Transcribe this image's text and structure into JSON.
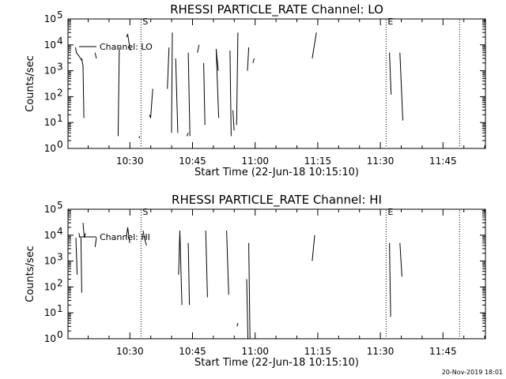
{
  "footer": {
    "timestamp": "20-Nov-2019 18:01"
  },
  "chart_data": [
    {
      "type": "line",
      "title": "RHESSI PARTICLE_RATE Channel: LO",
      "xlabel": "Start Time (22-Jun-18 10:15:10)",
      "ylabel": "Counts/sec",
      "x_unit": "minutes after 10:15:10",
      "xlim": [
        0,
        100
      ],
      "ylim": [
        1,
        100000
      ],
      "yscale": "log",
      "x_ticks": [
        {
          "v": 14.83,
          "label": "10:30"
        },
        {
          "v": 29.83,
          "label": "10:45"
        },
        {
          "v": 44.83,
          "label": "11:00"
        },
        {
          "v": 59.83,
          "label": "11:15"
        },
        {
          "v": 74.83,
          "label": "11:30"
        },
        {
          "v": 89.83,
          "label": "11:45"
        }
      ],
      "y_ticks": [
        {
          "v": 1,
          "label": "10^0"
        },
        {
          "v": 10,
          "label": "10^1"
        },
        {
          "v": 100,
          "label": "10^2"
        },
        {
          "v": 1000,
          "label": "10^3"
        },
        {
          "v": 10000,
          "label": "10^4"
        },
        {
          "v": 100000,
          "label": "10^5"
        }
      ],
      "legend": "Channel: LO",
      "vlines": [
        {
          "x": 17.5,
          "marker": "S"
        },
        {
          "x": 76.2,
          "marker": "E"
        },
        {
          "x": 93.8,
          "marker": ""
        }
      ],
      "series": [
        {
          "segments": [
            [
              [
                1.8,
                8000
              ],
              [
                2.0,
                5000
              ],
              [
                2.5,
                4000
              ],
              [
                3.0,
                3000
              ],
              [
                3.3,
                2500
              ]
            ],
            [
              [
                3.3,
                3000
              ],
              [
                3.6,
                1500
              ],
              [
                3.8,
                15
              ]
            ],
            [
              [
                6.5,
                5000
              ],
              [
                6.8,
                3000
              ]
            ],
            [
              [
                12.0,
                3
              ],
              [
                12.3,
                8000
              ]
            ],
            [
              [
                14.0,
                20000
              ],
              [
                14.3,
                25000
              ],
              [
                14.8,
                8000
              ],
              [
                15.0,
                6000
              ]
            ],
            [
              [
                17.0,
                3
              ],
              [
                17.2,
                2.5
              ]
            ],
            [
              [
                19.5,
                20
              ],
              [
                19.8,
                15
              ],
              [
                20.3,
                200
              ]
            ],
            [
              [
                23.8,
                200
              ],
              [
                24.2,
                8000
              ]
            ],
            [
              [
                24.8,
                4
              ],
              [
                25.0,
                30000
              ]
            ],
            [
              [
                25.8,
                3000
              ],
              [
                26.3,
                4
              ]
            ],
            [
              [
                28.5,
                3
              ],
              [
                28.8,
                4
              ]
            ],
            [
              [
                28.8,
                5000
              ],
              [
                29.2,
                3
              ]
            ],
            [
              [
                31.0,
                5000
              ],
              [
                31.4,
                10000
              ]
            ],
            [
              [
                32.5,
                2000
              ],
              [
                32.8,
                8
              ]
            ],
            [
              [
                36.0,
                1000
              ],
              [
                35.5,
                7000
              ],
              [
                36.1,
                15
              ]
            ],
            [
              [
                38.8,
                6000
              ],
              [
                39.1,
                3
              ]
            ],
            [
              [
                39.5,
                30
              ],
              [
                39.8,
                5
              ]
            ],
            [
              [
                40.4,
                8
              ],
              [
                40.7,
                30000
              ]
            ],
            [
              [
                43.0,
                1000
              ],
              [
                43.3,
                8000
              ]
            ],
            [
              [
                44.6,
                3000
              ],
              [
                44.3,
                2000
              ]
            ],
            [
              [
                58.5,
                3000
              ],
              [
                59.5,
                30000
              ]
            ],
            [
              [
                77.0,
                5000
              ],
              [
                77.4,
                120
              ]
            ],
            [
              [
                79.5,
                5000
              ],
              [
                80.2,
                12
              ]
            ]
          ]
        }
      ]
    },
    {
      "type": "line",
      "title": "RHESSI PARTICLE_RATE Channel: HI",
      "xlabel": "Start Time (22-Jun-18 10:15:10)",
      "ylabel": "Counts/sec",
      "x_unit": "minutes after 10:15:10",
      "xlim": [
        0,
        100
      ],
      "ylim": [
        1,
        100000
      ],
      "yscale": "log",
      "x_ticks": [
        {
          "v": 14.83,
          "label": "10:30"
        },
        {
          "v": 29.83,
          "label": "10:45"
        },
        {
          "v": 44.83,
          "label": "11:00"
        },
        {
          "v": 59.83,
          "label": "11:15"
        },
        {
          "v": 74.83,
          "label": "11:30"
        },
        {
          "v": 89.83,
          "label": "11:45"
        }
      ],
      "y_ticks": [
        {
          "v": 1,
          "label": "10^0"
        },
        {
          "v": 10,
          "label": "10^1"
        },
        {
          "v": 100,
          "label": "10^2"
        },
        {
          "v": 1000,
          "label": "10^3"
        },
        {
          "v": 10000,
          "label": "10^4"
        },
        {
          "v": 100000,
          "label": "10^5"
        }
      ],
      "legend": "Channel: HI",
      "vlines": [
        {
          "x": 17.5,
          "marker": "S"
        },
        {
          "x": 76.2,
          "marker": "E"
        },
        {
          "x": 93.8,
          "marker": ""
        }
      ],
      "series": [
        {
          "segments": [
            [
              [
                1.9,
                8000
              ],
              [
                2.2,
                300
              ]
            ],
            [
              [
                2.6,
                12000
              ],
              [
                2.9,
                8000
              ]
            ],
            [
              [
                3.1,
                8000
              ],
              [
                3.3,
                60
              ]
            ],
            [
              [
                3.6,
                30000
              ],
              [
                3.9,
                8000
              ],
              [
                4.2,
                12000
              ]
            ],
            [
              [
                6.5,
                3500
              ],
              [
                6.8,
                8000
              ]
            ],
            [
              [
                14.0,
                8000
              ],
              [
                14.3,
                20000
              ],
              [
                14.8,
                5000
              ]
            ],
            [
              [
                18.0,
                15000
              ],
              [
                18.3,
                8000
              ],
              [
                18.8,
                4000
              ]
            ],
            [
              [
                26.5,
                300
              ],
              [
                26.8,
                15000
              ],
              [
                27.3,
                20
              ]
            ],
            [
              [
                28.8,
                5000
              ],
              [
                29.1,
                20
              ]
            ],
            [
              [
                33.0,
                15000
              ],
              [
                33.4,
                40
              ]
            ],
            [
              [
                38.0,
                15000
              ],
              [
                38.5,
                50
              ]
            ],
            [
              [
                40.5,
                3
              ],
              [
                40.7,
                4
              ]
            ],
            [
              [
                42.8,
                200
              ],
              [
                43.1,
                1
              ]
            ],
            [
              [
                43.3,
                5000
              ],
              [
                43.6,
                0.9
              ]
            ],
            [
              [
                58.5,
                1000
              ],
              [
                59.1,
                10000
              ]
            ],
            [
              [
                77.0,
                5000
              ],
              [
                77.3,
                7
              ]
            ],
            [
              [
                79.5,
                5000
              ],
              [
                80.0,
                250
              ]
            ]
          ]
        }
      ]
    }
  ]
}
